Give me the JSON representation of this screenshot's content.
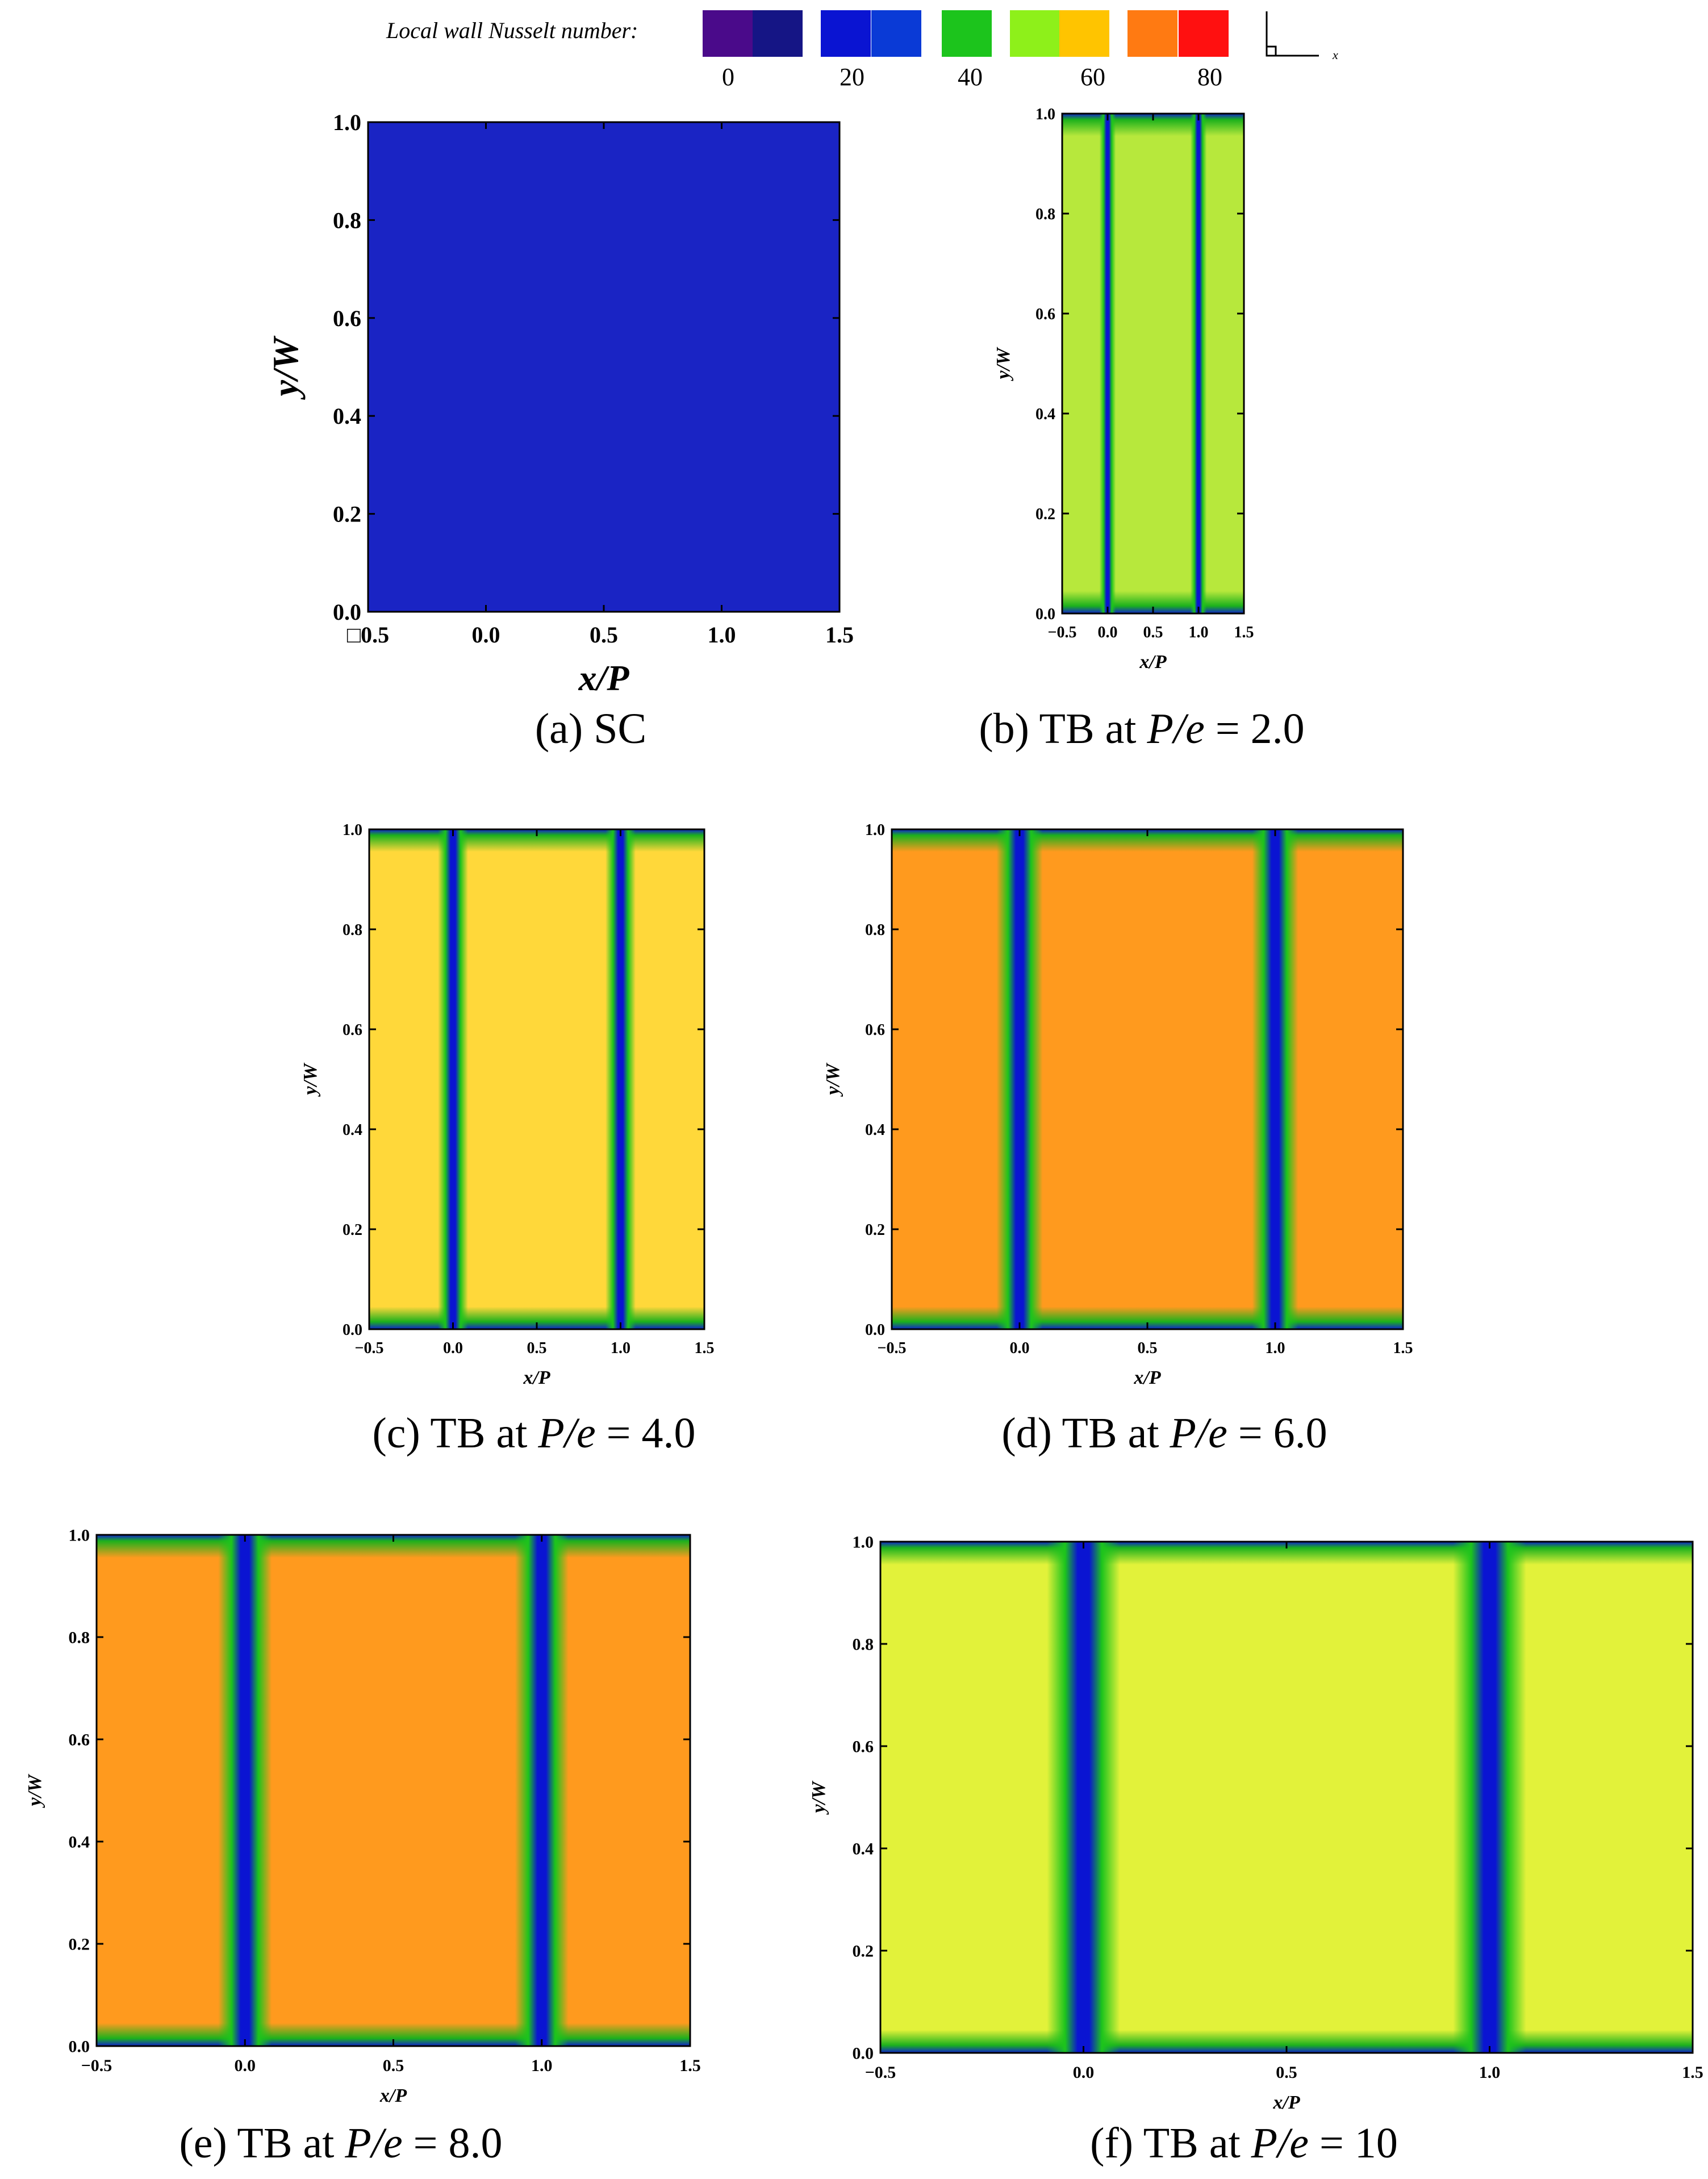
{
  "legend": {
    "title": "Local wall Nusselt number:",
    "swatches": [
      {
        "color": "#4a0a8a"
      },
      {
        "color": "#151585"
      },
      {
        "color": "#0a14d2"
      },
      {
        "color": "#0a3ad6"
      },
      {
        "color": "#1cc41c"
      },
      {
        "color": "#8ef01a"
      },
      {
        "color": "#ffc400"
      },
      {
        "color": "#ff7a12"
      },
      {
        "color": "#ff1010"
      }
    ],
    "tick_labels": [
      "0",
      "20",
      "40",
      "60",
      "80"
    ],
    "axis_glyph_label": "x"
  },
  "chart_data": [
    {
      "id": "a",
      "type": "heatmap",
      "caption": "(a) SC",
      "caption_parts": [
        "(a) SC",
        "",
        ""
      ],
      "xlabel": "x/P",
      "ylabel": "y/W",
      "xlim": [
        -0.5,
        1.5
      ],
      "ylim": [
        0,
        1
      ],
      "xticks": [
        "□0.5",
        "0.0",
        "0.5",
        "1.0",
        "1.5"
      ],
      "yticks": [
        "0.0",
        "0.2",
        "0.4",
        "0.6",
        "0.8",
        "1.0"
      ],
      "ribs_x": [],
      "field_color": "#1a24c4",
      "value_note": ""
    },
    {
      "id": "b",
      "type": "heatmap",
      "caption_parts": [
        "(b) TB at ",
        "P/e",
        " = 2.0"
      ],
      "xlabel": "x/P",
      "ylabel": "y/W",
      "xlim": [
        -0.5,
        1.5
      ],
      "ylim": [
        0,
        1
      ],
      "xticks": [
        "−0.5",
        "0.0",
        "0.5",
        "1.0",
        "1.5"
      ],
      "yticks": [
        "0.0",
        "0.2",
        "0.4",
        "0.6",
        "0.8",
        "1.0"
      ],
      "ribs_x": [
        0.0,
        1.0
      ],
      "field_color": "#b7e83c"
    },
    {
      "id": "c",
      "type": "heatmap",
      "caption_parts": [
        "(c) TB at ",
        "P/e",
        " = 4.0"
      ],
      "xlabel": "x/P",
      "ylabel": "y/W",
      "xlim": [
        -0.5,
        1.5
      ],
      "ylim": [
        0,
        1
      ],
      "xticks": [
        "−0.5",
        "0.0",
        "0.5",
        "1.0",
        "1.5"
      ],
      "yticks": [
        "0.0",
        "0.2",
        "0.4",
        "0.6",
        "0.8",
        "1.0"
      ],
      "ribs_x": [
        0.0,
        1.0
      ],
      "field_color": "#ffd83a"
    },
    {
      "id": "d",
      "type": "heatmap",
      "caption_parts": [
        "(d) TB at ",
        "P/e",
        " = 6.0"
      ],
      "xlabel": "x/P",
      "ylabel": "y/W",
      "xlim": [
        -0.5,
        1.5
      ],
      "ylim": [
        0,
        1
      ],
      "xticks": [
        "−0.5",
        "0.0",
        "0.5",
        "1.0",
        "1.5"
      ],
      "yticks": [
        "0.0",
        "0.2",
        "0.4",
        "0.6",
        "0.8",
        "1.0"
      ],
      "ribs_x": [
        0.0,
        1.0
      ],
      "field_color": "#ff9a1e"
    },
    {
      "id": "e",
      "type": "heatmap",
      "caption_parts": [
        "(e) TB at ",
        "P/e",
        " = 8.0"
      ],
      "xlabel": "x/P",
      "ylabel": "y/W",
      "xlim": [
        -0.5,
        1.5
      ],
      "ylim": [
        0,
        1
      ],
      "xticks": [
        "−0.5",
        "0.0",
        "0.5",
        "1.0",
        "1.5"
      ],
      "yticks": [
        "0.0",
        "0.2",
        "0.4",
        "0.6",
        "0.8",
        "1.0"
      ],
      "ribs_x": [
        0.0,
        1.0
      ],
      "field_color": "#ff9a1e"
    },
    {
      "id": "f",
      "type": "heatmap",
      "caption_parts": [
        "(f) TB at ",
        "P/e",
        " = 10"
      ],
      "xlabel": "x/P",
      "ylabel": "y/W",
      "xlim": [
        -0.5,
        1.5
      ],
      "ylim": [
        0,
        1
      ],
      "xticks": [
        "−0.5",
        "0.0",
        "0.5",
        "1.0",
        "1.5"
      ],
      "yticks": [
        "0.0",
        "0.2",
        "0.4",
        "0.6",
        "0.8",
        "1.0"
      ],
      "ribs_x": [
        0.0,
        1.0
      ],
      "field_color": "#e2f23a"
    }
  ]
}
